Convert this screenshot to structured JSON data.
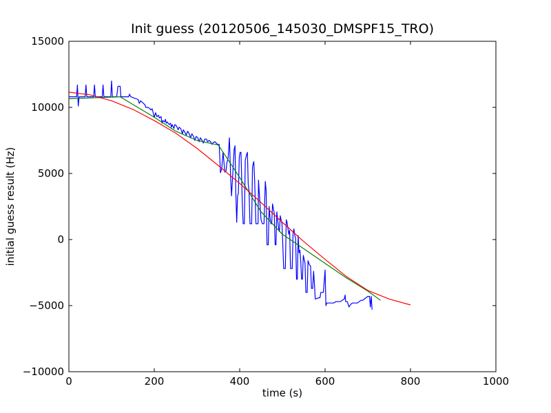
{
  "chart_data": {
    "type": "line",
    "title": "Init guess (20120506_145030_DMSPF15_TRO)",
    "xlabel": "time (s)",
    "ylabel": "initial guess result (Hz)",
    "xlim": [
      0,
      1000
    ],
    "ylim": [
      -10000,
      15000
    ],
    "xticks": [
      0,
      200,
      400,
      600,
      800,
      1000
    ],
    "yticks": [
      -10000,
      -5000,
      0,
      5000,
      10000,
      15000
    ],
    "xtick_labels": [
      "0",
      "200",
      "400",
      "600",
      "800",
      "1000"
    ],
    "ytick_labels": [
      "−10000",
      "−5000",
      "0",
      "5000",
      "10000",
      "15000"
    ],
    "grid": false,
    "legend": null,
    "series": [
      {
        "color": "#0000ff",
        "points": [
          [
            0,
            10800
          ],
          [
            18,
            10800
          ],
          [
            20,
            11700
          ],
          [
            22,
            10100
          ],
          [
            24,
            10800
          ],
          [
            38,
            10800
          ],
          [
            40,
            11700
          ],
          [
            42,
            10800
          ],
          [
            58,
            10800
          ],
          [
            60,
            11700
          ],
          [
            62,
            10800
          ],
          [
            78,
            10800
          ],
          [
            80,
            11700
          ],
          [
            82,
            10800
          ],
          [
            98,
            10800
          ],
          [
            100,
            12000
          ],
          [
            102,
            10800
          ],
          [
            112,
            10800
          ],
          [
            115,
            11600
          ],
          [
            120,
            11600
          ],
          [
            122,
            10800
          ],
          [
            140,
            10800
          ],
          [
            142,
            11000
          ],
          [
            145,
            10800
          ],
          [
            162,
            10600
          ],
          [
            165,
            10300
          ],
          [
            168,
            10500
          ],
          [
            178,
            10200
          ],
          [
            180,
            10000
          ],
          [
            185,
            10000
          ],
          [
            190,
            9900
          ],
          [
            192,
            9800
          ],
          [
            195,
            9900
          ],
          [
            198,
            9500
          ],
          [
            200,
            9250
          ],
          [
            203,
            9600
          ],
          [
            206,
            9300
          ],
          [
            210,
            9400
          ],
          [
            212,
            9200
          ],
          [
            216,
            9300
          ],
          [
            218,
            8800
          ],
          [
            220,
            9000
          ],
          [
            224,
            8900
          ],
          [
            226,
            9100
          ],
          [
            228,
            8800
          ],
          [
            230,
            8900
          ],
          [
            235,
            8700
          ],
          [
            238,
            8800
          ],
          [
            240,
            8500
          ],
          [
            242,
            8700
          ],
          [
            246,
            8400
          ],
          [
            248,
            8700
          ],
          [
            252,
            8600
          ],
          [
            256,
            8300
          ],
          [
            258,
            8500
          ],
          [
            262,
            8400
          ],
          [
            266,
            8000
          ],
          [
            268,
            8300
          ],
          [
            272,
            8100
          ],
          [
            275,
            7900
          ],
          [
            278,
            8200
          ],
          [
            282,
            8000
          ],
          [
            285,
            7700
          ],
          [
            288,
            8000
          ],
          [
            292,
            7800
          ],
          [
            295,
            7500
          ],
          [
            298,
            7800
          ],
          [
            302,
            7700
          ],
          [
            305,
            7400
          ],
          [
            308,
            7700
          ],
          [
            312,
            7500
          ],
          [
            315,
            7300
          ],
          [
            318,
            7600
          ],
          [
            322,
            7600
          ],
          [
            325,
            7400
          ],
          [
            328,
            7500
          ],
          [
            332,
            7400
          ],
          [
            335,
            7200
          ],
          [
            338,
            7350
          ],
          [
            342,
            7400
          ],
          [
            345,
            7300
          ],
          [
            348,
            7200
          ],
          [
            352,
            7200
          ],
          [
            355,
            5050
          ],
          [
            358,
            5400
          ],
          [
            361,
            6600
          ],
          [
            363,
            5900
          ],
          [
            365,
            5100
          ],
          [
            368,
            5200
          ],
          [
            370,
            5800
          ],
          [
            373,
            6200
          ],
          [
            376,
            7700
          ],
          [
            379,
            4500
          ],
          [
            381,
            3300
          ],
          [
            384,
            5100
          ],
          [
            387,
            6800
          ],
          [
            389,
            7100
          ],
          [
            391,
            3500
          ],
          [
            393,
            1300
          ],
          [
            395,
            3300
          ],
          [
            397,
            3500
          ],
          [
            399,
            6200
          ],
          [
            401,
            6600
          ],
          [
            403,
            6600
          ],
          [
            406,
            2900
          ],
          [
            408,
            1200
          ],
          [
            411,
            1200
          ],
          [
            413,
            6000
          ],
          [
            416,
            6400
          ],
          [
            418,
            6600
          ],
          [
            420,
            4200
          ],
          [
            422,
            3700
          ],
          [
            424,
            1200
          ],
          [
            428,
            1200
          ],
          [
            430,
            5500
          ],
          [
            433,
            5900
          ],
          [
            435,
            4500
          ],
          [
            438,
            1200
          ],
          [
            443,
            1200
          ],
          [
            444,
            4500
          ],
          [
            446,
            3500
          ],
          [
            450,
            1500
          ],
          [
            453,
            1200
          ],
          [
            457,
            1200
          ],
          [
            460,
            4400
          ],
          [
            462,
            3700
          ],
          [
            464,
            -400
          ],
          [
            467,
            -400
          ],
          [
            469,
            2500
          ],
          [
            471,
            1700
          ],
          [
            473,
            1200
          ],
          [
            475,
            1200
          ],
          [
            477,
            2700
          ],
          [
            479,
            2300
          ],
          [
            481,
            2000
          ],
          [
            483,
            -400
          ],
          [
            485,
            -400
          ],
          [
            487,
            2100
          ],
          [
            489,
            1500
          ],
          [
            491,
            900
          ],
          [
            493,
            600
          ],
          [
            495,
            1800
          ],
          [
            497,
            1500
          ],
          [
            499,
            1200
          ],
          [
            503,
            -2200
          ],
          [
            507,
            -2200
          ],
          [
            509,
            1500
          ],
          [
            511,
            1300
          ],
          [
            513,
            800
          ],
          [
            515,
            400
          ],
          [
            517,
            700
          ],
          [
            519,
            -2200
          ],
          [
            523,
            -2200
          ],
          [
            525,
            500
          ],
          [
            527,
            800
          ],
          [
            529,
            300
          ],
          [
            531,
            100
          ],
          [
            533,
            -3000
          ],
          [
            535,
            -3000
          ],
          [
            537,
            300
          ],
          [
            539,
            -1000
          ],
          [
            541,
            -800
          ],
          [
            543,
            -1700
          ],
          [
            545,
            -3000
          ],
          [
            547,
            -3000
          ],
          [
            549,
            -1200
          ],
          [
            551,
            -1500
          ],
          [
            553,
            -1800
          ],
          [
            555,
            -4000
          ],
          [
            558,
            -4000
          ],
          [
            560,
            -1600
          ],
          [
            563,
            -1900
          ],
          [
            566,
            -2000
          ],
          [
            568,
            -3700
          ],
          [
            571,
            -3700
          ],
          [
            573,
            -2400
          ],
          [
            575,
            -3300
          ],
          [
            577,
            -4500
          ],
          [
            586,
            -4400
          ],
          [
            588,
            -4400
          ],
          [
            590,
            -4000
          ],
          [
            596,
            -4000
          ],
          [
            600,
            -2300
          ],
          [
            602,
            -5000
          ],
          [
            604,
            -4800
          ],
          [
            608,
            -4800
          ],
          [
            612,
            -4800
          ],
          [
            620,
            -4800
          ],
          [
            625,
            -4700
          ],
          [
            632,
            -4700
          ],
          [
            636,
            -4700
          ],
          [
            640,
            -4600
          ],
          [
            645,
            -4500
          ],
          [
            647,
            -4200
          ],
          [
            648,
            -4700
          ],
          [
            652,
            -4700
          ],
          [
            656,
            -5100
          ],
          [
            660,
            -4900
          ],
          [
            664,
            -4800
          ],
          [
            668,
            -4800
          ],
          [
            672,
            -4800
          ],
          [
            676,
            -4800
          ],
          [
            680,
            -4700
          ],
          [
            684,
            -4600
          ],
          [
            688,
            -4600
          ],
          [
            692,
            -4500
          ],
          [
            696,
            -4400
          ],
          [
            700,
            -4300
          ],
          [
            702,
            -4300
          ],
          [
            704,
            -4300
          ],
          [
            706,
            -5100
          ],
          [
            708,
            -4300
          ],
          [
            710,
            -5300
          ]
        ]
      },
      {
        "color": "#008000",
        "points": [
          [
            0,
            10650
          ],
          [
            120,
            10800
          ],
          [
            200,
            9250
          ],
          [
            250,
            8200
          ],
          [
            300,
            7500
          ],
          [
            350,
            7150
          ],
          [
            400,
            4700
          ],
          [
            450,
            2100
          ],
          [
            500,
            400
          ],
          [
            550,
            -700
          ],
          [
            600,
            -1800
          ],
          [
            650,
            -2900
          ],
          [
            700,
            -3900
          ],
          [
            730,
            -4600
          ]
        ]
      },
      {
        "color": "#ff0000",
        "points": [
          [
            0,
            11150
          ],
          [
            50,
            10950
          ],
          [
            100,
            10500
          ],
          [
            150,
            9850
          ],
          [
            200,
            9000
          ],
          [
            250,
            8050
          ],
          [
            300,
            6900
          ],
          [
            350,
            5600
          ],
          [
            400,
            4250
          ],
          [
            450,
            2800
          ],
          [
            500,
            1300
          ],
          [
            550,
            -150
          ],
          [
            600,
            -1500
          ],
          [
            650,
            -2800
          ],
          [
            700,
            -3850
          ],
          [
            750,
            -4500
          ],
          [
            800,
            -4950
          ]
        ]
      }
    ]
  }
}
